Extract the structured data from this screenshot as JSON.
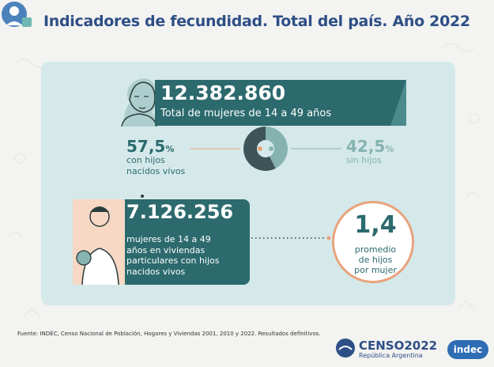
{
  "title": "Indicadores de fecundidad. Total del país. Año 2022",
  "block1": {
    "value": "12.382.860",
    "label": "Total de mujeres de 14 a 49 años",
    "left_pct": "57,5",
    "left_pct_sign": "%",
    "left_label_1": "con hijos",
    "left_label_2": "nacidos vivos",
    "right_pct": "42,5",
    "right_pct_sign": "%",
    "right_label": "sin hijos",
    "share_with_children": 57.5,
    "share_without_children": 42.5
  },
  "block2": {
    "value": "7.126.256",
    "label_lines": [
      "mujeres de 14 a 49",
      "años en viviendas",
      "particulares con hijos",
      "nacidos vivos"
    ],
    "avg_value": "1,4",
    "avg_label_lines": [
      "promedio",
      "de hijos",
      "por mujer"
    ]
  },
  "source": "Fuente: INDEC, Censo Nacional de Población, Hogares y Viviendas 2001, 2010 y 2022. Resultados definitivos.",
  "censo_logo": {
    "name": "CENSO2022",
    "sub": "República Argentina"
  },
  "indec_logo": "indec",
  "colors": {
    "title": "#2e4f86",
    "teal_dark": "#2c6a6e",
    "teal_light": "#86b3b0",
    "orange": "#e9a37d",
    "card": "#d5e9ea"
  }
}
